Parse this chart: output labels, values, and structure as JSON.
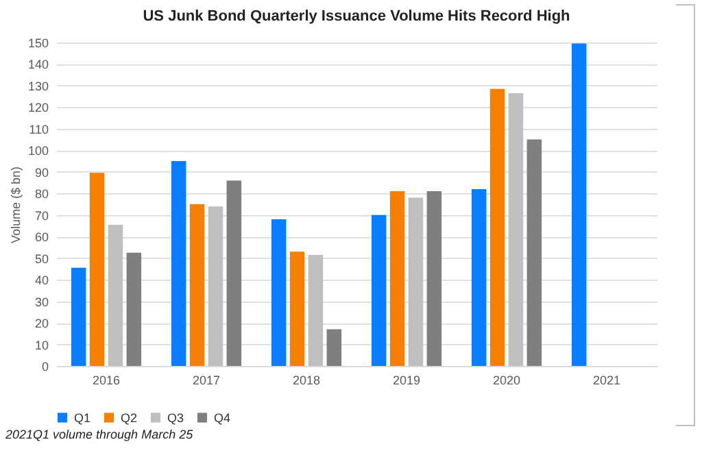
{
  "chart_data": {
    "type": "bar",
    "title": "US Junk Bond Quarterly Issuance Volume Hits Record High",
    "ylabel": "Volume ($ bn)",
    "categories": [
      "2016",
      "2017",
      "2018",
      "2019",
      "2020",
      "2021"
    ],
    "series": [
      {
        "name": "Q1",
        "color": "#0a7cff",
        "values": [
          45.5,
          95,
          68,
          70,
          82,
          149.5
        ]
      },
      {
        "name": "Q2",
        "color": "#f77f00",
        "values": [
          89.5,
          75,
          53,
          81,
          128.5,
          null
        ]
      },
      {
        "name": "Q3",
        "color": "#bfbfbf",
        "values": [
          65.5,
          74,
          51.5,
          78,
          126.5,
          null
        ]
      },
      {
        "name": "Q4",
        "color": "#7f7f7f",
        "values": [
          52.5,
          86,
          17,
          81,
          105,
          null
        ]
      }
    ],
    "ylim": [
      0,
      150
    ],
    "yticks": [
      0,
      10,
      20,
      30,
      40,
      50,
      60,
      70,
      80,
      90,
      100,
      110,
      120,
      130,
      140,
      150
    ],
    "grid": "y",
    "legend": "bottom",
    "annotations": [
      "2021Q1 volume through March 25"
    ]
  }
}
